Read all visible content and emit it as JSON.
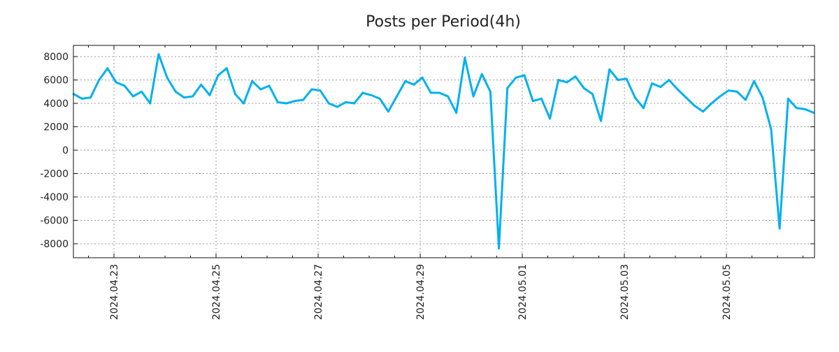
{
  "chart_data": {
    "type": "line",
    "title": "Posts per Period(4h)",
    "xlabel": "",
    "ylabel": "",
    "x_start": "2024-04-22T05:00",
    "step_hours": 4,
    "ylim": [
      -9194,
      8955
    ],
    "yticks": [
      8000,
      6000,
      4000,
      2000,
      0,
      -2000,
      -4000,
      -6000,
      -8000
    ],
    "ytick_labels": [
      "8000",
      "6000",
      "4000",
      "2000",
      "0",
      "-2000",
      "-4000",
      "-6000",
      "-8000"
    ],
    "xticks": [
      "2024-04-23",
      "2024-04-25",
      "2024-04-27",
      "2024-04-29",
      "2024-05-01",
      "2024-05-03",
      "2024-05-05"
    ],
    "xtick_labels": [
      "2024.04.23",
      "2024.04.25",
      "2024.04.27",
      "2024.04.29",
      "2024.05.01",
      "2024.05.03",
      "2024.05.05"
    ],
    "grid": true,
    "line_color": "#00b0f0",
    "series": [
      {
        "name": "posts",
        "values": [
          4800,
          4400,
          4500,
          6000,
          7000,
          5800,
          5500,
          4600,
          5000,
          4000,
          8200,
          6200,
          5000,
          4500,
          4600,
          5600,
          4700,
          6400,
          7000,
          4800,
          4000,
          5900,
          5200,
          5500,
          4100,
          4000,
          4200,
          4300,
          5200,
          5100,
          4000,
          3700,
          4100,
          4000,
          4900,
          4700,
          4400,
          3300,
          4600,
          5900,
          5600,
          6200,
          4900,
          4900,
          4600,
          3200,
          7900,
          4600,
          6500,
          5000,
          -8400,
          5300,
          6200,
          6400,
          4200,
          4400,
          2700,
          6000,
          5800,
          6300,
          5300,
          4800,
          2500,
          6900,
          6000,
          6100,
          4500,
          3600,
          5700,
          5400,
          6000,
          5200,
          4500,
          3800,
          3300,
          4000,
          4600,
          5100,
          5000,
          4300,
          5900,
          4500,
          1800,
          -6700,
          4400,
          3600,
          3500,
          3200
        ]
      }
    ]
  }
}
